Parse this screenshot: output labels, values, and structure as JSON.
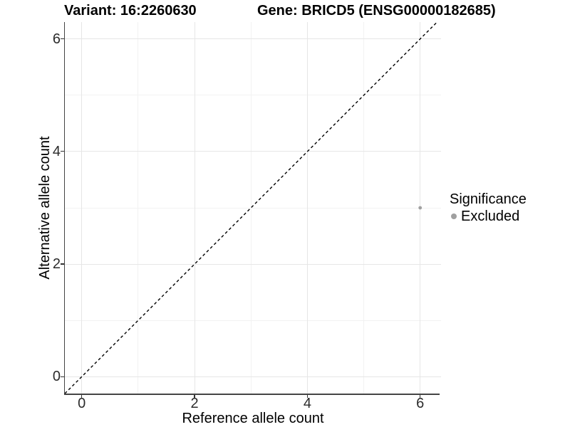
{
  "chart_data": {
    "type": "scatter",
    "titles": {
      "variant": "Variant: 16:2260630",
      "gene": "Gene: BRICD5 (ENSG00000182685)"
    },
    "xlabel": "Reference allele count",
    "ylabel": "Alternative allele count",
    "xlim": [
      -0.3,
      6.37
    ],
    "ylim": [
      -0.3,
      6.3
    ],
    "x_breaks": [
      0,
      2,
      4,
      6
    ],
    "y_breaks": [
      0,
      2,
      4,
      6
    ],
    "x_minor_breaks": [
      1,
      3,
      5
    ],
    "y_minor_breaks": [
      1,
      3,
      5
    ],
    "grid": "major+minor",
    "identity_line": {
      "type": "abline",
      "slope": 1,
      "intercept": 0,
      "style": "dashed",
      "color": "#000000"
    },
    "points": [
      {
        "x": 6,
        "y": 3,
        "series": "Excluded"
      }
    ],
    "point_radius_px": 2.4,
    "legend": {
      "title": "Significance",
      "position": "right",
      "items": [
        {
          "label": "Excluded",
          "color": "#a0a0a0"
        }
      ]
    },
    "colors": {
      "background": "#ffffff",
      "grid_major": "#e6e6e6",
      "grid_minor": "#f2f2f2",
      "axis_line": "#444444",
      "tick_mark": "#333333",
      "tick_text": "#2b2b2b"
    }
  }
}
